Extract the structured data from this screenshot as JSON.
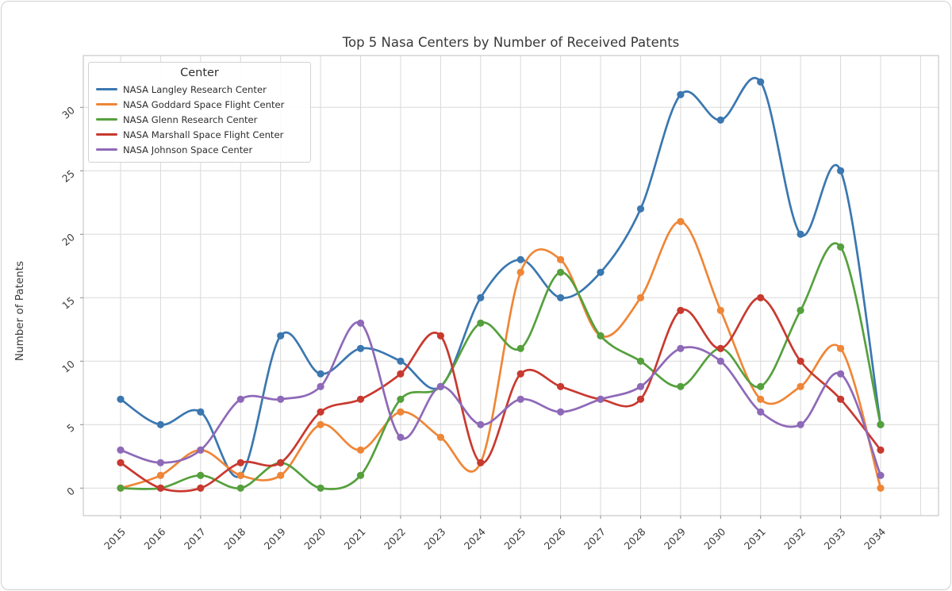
{
  "window": {
    "background": "#ffffff",
    "border_color": "#cfcfcf"
  },
  "chart_data": {
    "type": "line",
    "title": "Top 5 Nasa Centers by Number of Received Patents",
    "xlabel": "",
    "ylabel": "Number of Patents",
    "legend_title": "Center",
    "legend_position": "upper left",
    "grid": true,
    "marker": "circle",
    "smooth_curves": true,
    "tick_label_rotation": 45,
    "x": [
      2015,
      2016,
      2017,
      2018,
      2019,
      2020,
      2021,
      2022,
      2023,
      2024,
      2025,
      2026,
      2027,
      2028,
      2029,
      2030,
      2031,
      2032,
      2033,
      2034
    ],
    "yticks": [
      0,
      5,
      10,
      15,
      20,
      25,
      30
    ],
    "ylim": [
      -2.2,
      34.1
    ],
    "grid_color": "#d9d9d9",
    "spine_color": "#c9c9c9",
    "tick_color": "#8a8a8a",
    "text_color": "#3a3a3a",
    "series": [
      {
        "name": "NASA Langley Research Center",
        "color": "#3b77b0",
        "values": [
          7,
          5,
          6,
          1,
          12,
          9,
          11,
          10,
          8,
          15,
          18,
          15,
          17,
          22,
          31,
          29,
          32,
          20,
          25,
          5
        ]
      },
      {
        "name": "NASA Goddard Space Flight Center",
        "color": "#ef8637",
        "values": [
          0,
          1,
          3,
          1,
          1,
          5,
          3,
          6,
          4,
          2,
          17,
          18,
          12,
          15,
          21,
          14,
          7,
          8,
          11,
          0
        ]
      },
      {
        "name": "NASA Glenn Research Center",
        "color": "#55a03d",
        "values": [
          0,
          0,
          1,
          0,
          2,
          0,
          1,
          7,
          8,
          13,
          11,
          17,
          12,
          10,
          8,
          11,
          8,
          14,
          19,
          5
        ]
      },
      {
        "name": "NASA Marshall Space Flight Center",
        "color": "#c8392f",
        "values": [
          2,
          0,
          0,
          2,
          2,
          6,
          7,
          9,
          12,
          2,
          9,
          8,
          7,
          7,
          14,
          11,
          15,
          10,
          7,
          3
        ]
      },
      {
        "name": "NASA Johnson Space Center",
        "color": "#8e69b8",
        "values": [
          3,
          2,
          3,
          7,
          7,
          8,
          13,
          4,
          8,
          5,
          7,
          6,
          7,
          8,
          11,
          10,
          6,
          5,
          9,
          1
        ]
      }
    ]
  }
}
